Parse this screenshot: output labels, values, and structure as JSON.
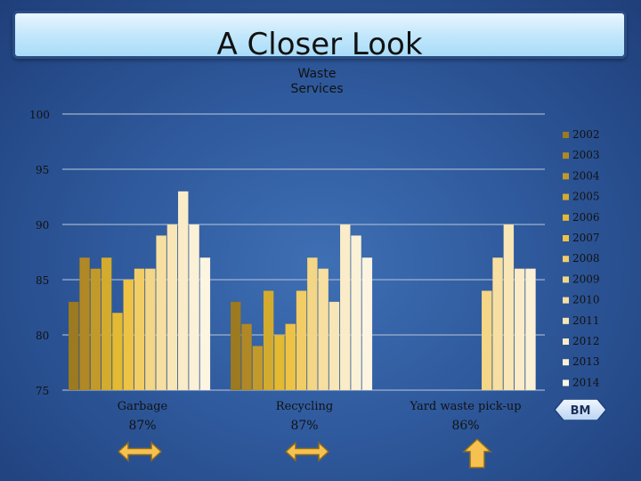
{
  "title": "A Closer Look",
  "colors": {
    "series": [
      "#9c7a22",
      "#b08926",
      "#c29a2c",
      "#d3ac2f",
      "#e4ba33",
      "#eec345",
      "#f2cd66",
      "#f4d786",
      "#f6dfa1",
      "#f8e6b6",
      "#faecc8",
      "#fbf1d6",
      "#fcf5e2"
    ],
    "arrow_fill": "#f6c14e",
    "arrow_stroke": "#8a6a1e",
    "grid": "#9fb3cf"
  },
  "chart_data": {
    "type": "bar",
    "title": "Waste Services",
    "xlabel": "",
    "ylabel": "",
    "ylim": [
      75,
      100
    ],
    "yticks": [
      75,
      80,
      85,
      90,
      95,
      100
    ],
    "grid": true,
    "legend": "right",
    "categories": [
      "Garbage",
      "Recycling",
      "Yard waste pick-up"
    ],
    "category_notes": [
      "87%",
      "87%",
      "86%"
    ],
    "series": [
      {
        "name": "2002",
        "values": [
          83,
          83,
          null
        ]
      },
      {
        "name": "2003",
        "values": [
          87,
          81,
          null
        ]
      },
      {
        "name": "2004",
        "values": [
          86,
          79,
          null
        ]
      },
      {
        "name": "2005",
        "values": [
          87,
          84,
          null
        ]
      },
      {
        "name": "2006",
        "values": [
          82,
          80,
          null
        ]
      },
      {
        "name": "2007",
        "values": [
          85,
          81,
          null
        ]
      },
      {
        "name": "2008",
        "values": [
          86,
          84,
          null
        ]
      },
      {
        "name": "2009",
        "values": [
          86,
          87,
          84
        ]
      },
      {
        "name": "2010",
        "values": [
          89,
          86,
          87
        ]
      },
      {
        "name": "2011",
        "values": [
          90,
          83,
          90
        ]
      },
      {
        "name": "2012",
        "values": [
          93,
          90,
          86
        ]
      },
      {
        "name": "2013",
        "values": [
          90,
          89,
          86
        ]
      },
      {
        "name": "2014",
        "values": [
          87,
          87,
          null
        ]
      }
    ]
  },
  "arrows": [
    {
      "category": "Garbage",
      "kind": "left-right-arrow"
    },
    {
      "category": "Recycling",
      "kind": "left-right-arrow"
    },
    {
      "category": "Yard waste pick-up",
      "kind": "up-arrow"
    }
  ],
  "bm_button": {
    "label": "BM"
  }
}
